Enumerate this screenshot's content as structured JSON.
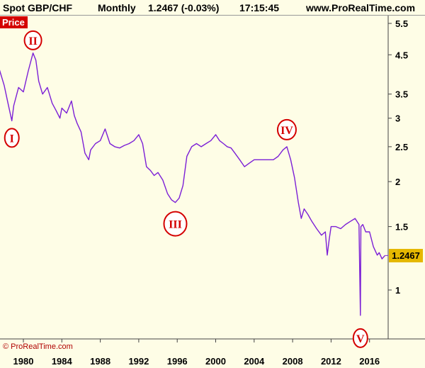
{
  "header": {
    "instrument": "Spot GBP/CHF",
    "timeframe": "Monthly",
    "last_quote": "1.2467 (-0.03%)",
    "time": "17:15:45",
    "site": "www.ProRealTime.com"
  },
  "panel_label": "Price",
  "copyright": "© ProRealTime.com",
  "last_price_label": "1.2467",
  "colors": {
    "background": "#fefde6",
    "price_line": "#7b1fd6",
    "wave_label": "#d40000",
    "price_tag": "#e5b800"
  },
  "chart_data": {
    "type": "line",
    "title": "Spot GBP/CHF Monthly",
    "xlabel": "",
    "ylabel": "",
    "y_scale": "log",
    "ylim": [
      0.72,
      6.1
    ],
    "xlim": [
      1977.5,
      2017.6
    ],
    "x_ticks": [
      "1980",
      "1984",
      "1988",
      "1992",
      "1996",
      "2000",
      "2004",
      "2008",
      "2012",
      "2016"
    ],
    "y_ticks": [
      "5.5",
      "4.5",
      "3.5",
      "3",
      "2.5",
      "2",
      "1.5",
      "1"
    ],
    "grid": false,
    "last_value": 1.2467,
    "series": [
      {
        "name": "",
        "x": [
          1977.5,
          1978.0,
          1978.4,
          1978.8,
          1979.0,
          1979.5,
          1980.0,
          1980.5,
          1981.0,
          1981.3,
          1981.6,
          1982.0,
          1982.5,
          1983.0,
          1983.4,
          1983.8,
          1984.0,
          1984.5,
          1985.0,
          1985.3,
          1985.6,
          1986.0,
          1986.4,
          1986.8,
          1987.0,
          1987.5,
          1988.0,
          1988.5,
          1989.0,
          1989.5,
          1990.0,
          1990.5,
          1991.0,
          1991.5,
          1992.0,
          1992.4,
          1992.8,
          1993.2,
          1993.6,
          1994.0,
          1994.5,
          1995.0,
          1995.4,
          1995.8,
          1996.2,
          1996.6,
          1997.0,
          1997.5,
          1998.0,
          1998.5,
          1999.0,
          1999.5,
          2000.0,
          2000.4,
          2000.8,
          2001.2,
          2001.6,
          2002.0,
          2002.5,
          2003.0,
          2003.5,
          2004.0,
          2004.5,
          2005.0,
          2005.5,
          2006.0,
          2006.5,
          2007.0,
          2007.4,
          2007.8,
          2008.2,
          2008.6,
          2008.9,
          2009.2,
          2009.6,
          2010.0,
          2010.5,
          2011.0,
          2011.4,
          2011.6,
          2011.8,
          2012.0,
          2012.5,
          2013.0,
          2013.5,
          2014.0,
          2014.5,
          2014.9,
          2015.05,
          2015.1,
          2015.3,
          2015.6,
          2016.0,
          2016.4,
          2016.8,
          2017.0,
          2017.3,
          2017.6
        ],
        "values": [
          4.1,
          3.7,
          3.3,
          2.95,
          3.25,
          3.65,
          3.55,
          4.05,
          4.55,
          4.35,
          3.8,
          3.5,
          3.65,
          3.3,
          3.15,
          3.0,
          3.2,
          3.1,
          3.35,
          3.05,
          2.9,
          2.75,
          2.4,
          2.3,
          2.45,
          2.55,
          2.6,
          2.8,
          2.55,
          2.5,
          2.48,
          2.52,
          2.55,
          2.6,
          2.7,
          2.55,
          2.2,
          2.15,
          2.08,
          2.12,
          2.02,
          1.85,
          1.78,
          1.75,
          1.8,
          1.95,
          2.35,
          2.5,
          2.55,
          2.5,
          2.55,
          2.6,
          2.7,
          2.6,
          2.55,
          2.5,
          2.48,
          2.4,
          2.3,
          2.2,
          2.25,
          2.3,
          2.3,
          2.3,
          2.3,
          2.3,
          2.35,
          2.45,
          2.5,
          2.3,
          2.05,
          1.75,
          1.58,
          1.68,
          1.62,
          1.55,
          1.48,
          1.42,
          1.45,
          1.25,
          1.38,
          1.5,
          1.5,
          1.48,
          1.52,
          1.55,
          1.58,
          1.52,
          0.85,
          1.5,
          1.52,
          1.45,
          1.45,
          1.32,
          1.25,
          1.27,
          1.22,
          1.2467
        ]
      }
    ],
    "annotations": [
      {
        "label": "I",
        "x": 1978.8,
        "y": 2.95
      },
      {
        "label": "II",
        "x": 1981.0,
        "y": 4.55
      },
      {
        "label": "III",
        "x": 1995.8,
        "y": 1.75
      },
      {
        "label": "IV",
        "x": 2007.4,
        "y": 2.5
      },
      {
        "label": "V",
        "x": 2015.05,
        "y": 0.85
      }
    ]
  }
}
